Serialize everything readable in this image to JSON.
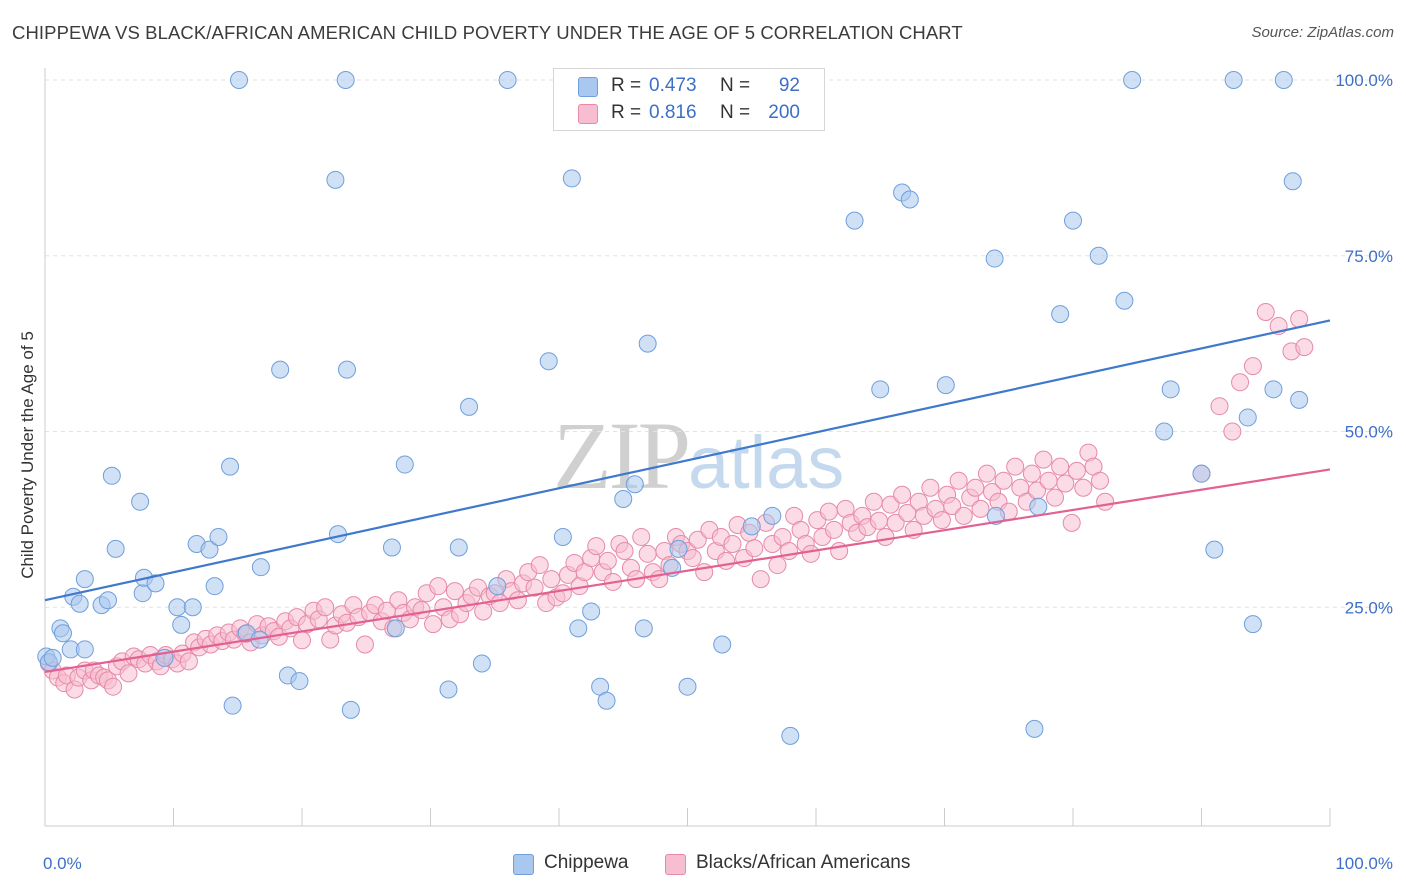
{
  "header": {
    "title": "CHIPPEWA VS BLACK/AFRICAN AMERICAN CHILD POVERTY UNDER THE AGE OF 5 CORRELATION CHART",
    "source": "Source: ZipAtlas.com"
  },
  "watermark": {
    "zip": "ZIP",
    "atlas": "atlas"
  },
  "legend": {
    "rows": [
      {
        "r_label": "R =",
        "r_value": "0.473",
        "n_label": "N =",
        "n_value": "92",
        "color": "#a9c8ef",
        "border": "#6f9fdc"
      },
      {
        "r_label": "R =",
        "r_value": "0.816",
        "n_label": "N =",
        "n_value": "200",
        "color": "#f7bdd0",
        "border": "#e68aa8"
      }
    ]
  },
  "bottom_legend": [
    {
      "label": "Chippewa",
      "color": "#a9c8ef",
      "border": "#6f9fdc"
    },
    {
      "label": "Blacks/African Americans",
      "color": "#f7bdd0",
      "border": "#e68aa8"
    }
  ],
  "chart_data": {
    "type": "scatter",
    "title": "CHIPPEWA VS BLACK/AFRICAN AMERICAN CHILD POVERTY UNDER THE AGE OF 5 CORRELATION CHART",
    "xlabel": "",
    "ylabel": "Child Poverty Under the Age of 5",
    "xlim": [
      0,
      100
    ],
    "ylim": [
      0,
      102
    ],
    "x_tick_labels": [
      "0.0%",
      "100.0%"
    ],
    "y_ticks": [
      25,
      50,
      75,
      100
    ],
    "y_tick_labels": [
      "25.0%",
      "50.0%",
      "75.0%",
      "100.0%"
    ],
    "grid": true,
    "legend_position": "top-center",
    "series": [
      {
        "name": "Chippewa",
        "color": "#6f9fdc",
        "fill": "#a9c8ef",
        "trend": {
          "x": [
            0,
            100
          ],
          "y": [
            26.0,
            65.8
          ],
          "color": "#3f78cc"
        },
        "points": [
          [
            0.1,
            18.0
          ],
          [
            0.3,
            17.2
          ],
          [
            0.6,
            17.8
          ],
          [
            1.2,
            22.0
          ],
          [
            1.4,
            21.3
          ],
          [
            2.0,
            19.0
          ],
          [
            2.2,
            26.5
          ],
          [
            2.7,
            25.5
          ],
          [
            3.1,
            29.0
          ],
          [
            3.1,
            19.0
          ],
          [
            4.4,
            25.3
          ],
          [
            4.9,
            26.0
          ],
          [
            5.2,
            43.7
          ],
          [
            5.5,
            33.3
          ],
          [
            7.4,
            40.0
          ],
          [
            7.6,
            27.0
          ],
          [
            7.7,
            29.2
          ],
          [
            8.6,
            28.4
          ],
          [
            9.3,
            17.8
          ],
          [
            10.3,
            25.0
          ],
          [
            10.6,
            22.5
          ],
          [
            11.5,
            25.0
          ],
          [
            11.8,
            34.0
          ],
          [
            12.8,
            33.2
          ],
          [
            13.2,
            28.0
          ],
          [
            13.5,
            35.0
          ],
          [
            14.4,
            45.0
          ],
          [
            14.6,
            11.0
          ],
          [
            15.1,
            100.0
          ],
          [
            15.7,
            21.3
          ],
          [
            16.7,
            20.4
          ],
          [
            16.8,
            30.7
          ],
          [
            18.3,
            58.8
          ],
          [
            18.9,
            15.3
          ],
          [
            19.8,
            14.5
          ],
          [
            22.6,
            85.8
          ],
          [
            22.8,
            35.4
          ],
          [
            23.4,
            100.0
          ],
          [
            23.5,
            58.8
          ],
          [
            23.8,
            10.4
          ],
          [
            27.0,
            33.5
          ],
          [
            27.3,
            22.0
          ],
          [
            28.0,
            45.3
          ],
          [
            31.4,
            13.3
          ],
          [
            32.2,
            33.5
          ],
          [
            33.0,
            53.5
          ],
          [
            34.0,
            17.0
          ],
          [
            35.2,
            28.0
          ],
          [
            36.0,
            100.0
          ],
          [
            39.2,
            60.0
          ],
          [
            40.3,
            35.0
          ],
          [
            41.0,
            86.0
          ],
          [
            41.5,
            22.0
          ],
          [
            42.5,
            24.4
          ],
          [
            43.2,
            13.7
          ],
          [
            43.7,
            11.7
          ],
          [
            45.0,
            40.4
          ],
          [
            45.9,
            42.5
          ],
          [
            46.6,
            22.0
          ],
          [
            46.9,
            62.5
          ],
          [
            48.8,
            30.6
          ],
          [
            49.3,
            33.3
          ],
          [
            50.0,
            13.7
          ],
          [
            52.7,
            19.7
          ],
          [
            56.6,
            38.0
          ],
          [
            58.0,
            6.7
          ],
          [
            63.0,
            80.0
          ],
          [
            65.0,
            56.0
          ],
          [
            66.7,
            84.0
          ],
          [
            67.3,
            83.0
          ],
          [
            70.1,
            56.6
          ],
          [
            73.9,
            74.6
          ],
          [
            74.0,
            38.0
          ],
          [
            77.0,
            7.7
          ],
          [
            77.3,
            39.3
          ],
          [
            79.0,
            66.7
          ],
          [
            80.0,
            80.0
          ],
          [
            82.0,
            75.0
          ],
          [
            84.0,
            68.6
          ],
          [
            84.6,
            100.0
          ],
          [
            87.1,
            50.0
          ],
          [
            87.6,
            56.0
          ],
          [
            90.0,
            44.0
          ],
          [
            91.0,
            33.2
          ],
          [
            92.5,
            100.0
          ],
          [
            93.6,
            52.0
          ],
          [
            94.0,
            22.6
          ],
          [
            95.6,
            56.0
          ],
          [
            96.4,
            100.0
          ],
          [
            97.1,
            85.6
          ],
          [
            97.6,
            54.5
          ],
          [
            55.0,
            36.5
          ]
        ]
      },
      {
        "name": "Blacks/African Americans",
        "color": "#e68aa8",
        "fill": "#f7bdd0",
        "trend": {
          "x": [
            0,
            100
          ],
          "y": [
            15.8,
            44.6
          ],
          "color": "#e26192"
        },
        "points": [
          [
            0.3,
            17.0
          ],
          [
            0.6,
            16.0
          ],
          [
            1.0,
            15.0
          ],
          [
            1.5,
            14.2
          ],
          [
            1.7,
            15.3
          ],
          [
            2.3,
            13.3
          ],
          [
            2.6,
            15.0
          ],
          [
            3.1,
            16.0
          ],
          [
            3.6,
            14.6
          ],
          [
            3.8,
            16.0
          ],
          [
            4.2,
            15.3
          ],
          [
            4.6,
            15.0
          ],
          [
            4.9,
            14.6
          ],
          [
            5.3,
            13.7
          ],
          [
            5.6,
            16.6
          ],
          [
            6.0,
            17.3
          ],
          [
            6.5,
            15.6
          ],
          [
            6.9,
            18.0
          ],
          [
            7.3,
            17.6
          ],
          [
            7.8,
            17.0
          ],
          [
            8.2,
            18.2
          ],
          [
            8.7,
            17.3
          ],
          [
            9.0,
            16.6
          ],
          [
            9.4,
            18.2
          ],
          [
            9.9,
            17.6
          ],
          [
            10.3,
            17.0
          ],
          [
            10.7,
            18.4
          ],
          [
            11.2,
            17.3
          ],
          [
            11.6,
            20.0
          ],
          [
            12.0,
            19.3
          ],
          [
            12.5,
            20.5
          ],
          [
            12.9,
            19.7
          ],
          [
            13.4,
            21.0
          ],
          [
            13.8,
            20.2
          ],
          [
            14.3,
            21.4
          ],
          [
            14.7,
            20.4
          ],
          [
            15.2,
            22.0
          ],
          [
            15.6,
            21.2
          ],
          [
            16.0,
            20.0
          ],
          [
            16.5,
            22.6
          ],
          [
            16.9,
            21.0
          ],
          [
            17.4,
            22.3
          ],
          [
            17.8,
            21.6
          ],
          [
            18.2,
            20.8
          ],
          [
            18.7,
            23.0
          ],
          [
            19.1,
            22.0
          ],
          [
            19.6,
            23.6
          ],
          [
            20.0,
            20.3
          ],
          [
            20.4,
            22.6
          ],
          [
            20.9,
            24.5
          ],
          [
            21.3,
            23.3
          ],
          [
            21.8,
            25.0
          ],
          [
            22.2,
            20.4
          ],
          [
            22.6,
            22.4
          ],
          [
            23.1,
            24.0
          ],
          [
            23.5,
            22.8
          ],
          [
            24.0,
            25.3
          ],
          [
            24.4,
            23.6
          ],
          [
            24.9,
            19.7
          ],
          [
            25.3,
            24.2
          ],
          [
            25.7,
            25.3
          ],
          [
            26.2,
            23.0
          ],
          [
            26.6,
            24.5
          ],
          [
            27.1,
            22.0
          ],
          [
            27.5,
            26.0
          ],
          [
            27.9,
            24.2
          ],
          [
            28.4,
            23.3
          ],
          [
            28.8,
            25.0
          ],
          [
            29.3,
            24.6
          ],
          [
            29.7,
            27.0
          ],
          [
            30.2,
            22.6
          ],
          [
            30.6,
            28.0
          ],
          [
            31.0,
            25.0
          ],
          [
            31.5,
            23.3
          ],
          [
            31.9,
            27.3
          ],
          [
            32.3,
            24.0
          ],
          [
            32.8,
            25.6
          ],
          [
            33.2,
            26.6
          ],
          [
            33.7,
            27.8
          ],
          [
            34.1,
            24.4
          ],
          [
            34.6,
            26.6
          ],
          [
            35.0,
            27.0
          ],
          [
            35.4,
            25.6
          ],
          [
            35.9,
            29.0
          ],
          [
            36.3,
            27.3
          ],
          [
            36.8,
            26.0
          ],
          [
            37.2,
            28.4
          ],
          [
            37.6,
            30.0
          ],
          [
            38.1,
            27.8
          ],
          [
            38.5,
            31.0
          ],
          [
            39.0,
            25.6
          ],
          [
            39.4,
            29.0
          ],
          [
            39.8,
            26.4
          ],
          [
            40.3,
            27.0
          ],
          [
            40.7,
            29.6
          ],
          [
            41.2,
            31.3
          ],
          [
            41.6,
            28.0
          ],
          [
            42.0,
            30.0
          ],
          [
            42.5,
            32.0
          ],
          [
            42.9,
            33.7
          ],
          [
            43.4,
            30.0
          ],
          [
            43.8,
            31.6
          ],
          [
            44.2,
            28.6
          ],
          [
            44.7,
            34.0
          ],
          [
            45.1,
            33.0
          ],
          [
            45.6,
            30.6
          ],
          [
            46.0,
            29.0
          ],
          [
            46.4,
            35.0
          ],
          [
            46.9,
            32.6
          ],
          [
            47.3,
            30.0
          ],
          [
            47.8,
            29.0
          ],
          [
            48.2,
            33.0
          ],
          [
            48.6,
            31.0
          ],
          [
            49.1,
            35.0
          ],
          [
            49.5,
            34.0
          ],
          [
            50.0,
            33.0
          ],
          [
            50.4,
            32.0
          ],
          [
            50.8,
            34.6
          ],
          [
            51.3,
            30.0
          ],
          [
            51.7,
            36.0
          ],
          [
            52.2,
            33.0
          ],
          [
            52.6,
            35.0
          ],
          [
            53.0,
            31.6
          ],
          [
            53.5,
            34.0
          ],
          [
            53.9,
            36.7
          ],
          [
            54.4,
            32.0
          ],
          [
            54.8,
            35.6
          ],
          [
            55.2,
            33.4
          ],
          [
            55.7,
            29.0
          ],
          [
            56.1,
            37.0
          ],
          [
            56.6,
            34.0
          ],
          [
            57.0,
            31.0
          ],
          [
            57.4,
            35.0
          ],
          [
            57.9,
            33.0
          ],
          [
            58.3,
            38.0
          ],
          [
            58.8,
            36.0
          ],
          [
            59.2,
            34.0
          ],
          [
            59.6,
            32.6
          ],
          [
            60.1,
            37.4
          ],
          [
            60.5,
            35.0
          ],
          [
            61.0,
            38.6
          ],
          [
            61.4,
            36.0
          ],
          [
            61.8,
            33.0
          ],
          [
            62.3,
            39.0
          ],
          [
            62.7,
            37.0
          ],
          [
            63.2,
            35.6
          ],
          [
            63.6,
            38.0
          ],
          [
            64.0,
            36.4
          ],
          [
            64.5,
            40.0
          ],
          [
            64.9,
            37.3
          ],
          [
            65.4,
            35.0
          ],
          [
            65.8,
            39.6
          ],
          [
            66.2,
            37.0
          ],
          [
            66.7,
            41.0
          ],
          [
            67.1,
            38.4
          ],
          [
            67.6,
            36.0
          ],
          [
            68.0,
            40.0
          ],
          [
            68.4,
            38.0
          ],
          [
            68.9,
            42.0
          ],
          [
            69.3,
            39.0
          ],
          [
            69.8,
            37.4
          ],
          [
            70.2,
            41.0
          ],
          [
            70.6,
            39.4
          ],
          [
            71.1,
            43.0
          ],
          [
            71.5,
            38.0
          ],
          [
            72.0,
            40.6
          ],
          [
            72.4,
            42.0
          ],
          [
            72.8,
            39.0
          ],
          [
            73.3,
            44.0
          ],
          [
            73.7,
            41.4
          ],
          [
            74.2,
            40.0
          ],
          [
            74.6,
            43.0
          ],
          [
            75.0,
            38.6
          ],
          [
            75.5,
            45.0
          ],
          [
            75.9,
            42.0
          ],
          [
            76.4,
            40.0
          ],
          [
            76.8,
            44.0
          ],
          [
            77.2,
            41.6
          ],
          [
            77.7,
            46.0
          ],
          [
            78.1,
            43.0
          ],
          [
            78.6,
            40.6
          ],
          [
            79.0,
            45.0
          ],
          [
            79.4,
            42.6
          ],
          [
            79.9,
            37.0
          ],
          [
            80.3,
            44.4
          ],
          [
            80.8,
            42.0
          ],
          [
            81.2,
            47.0
          ],
          [
            81.6,
            45.0
          ],
          [
            82.1,
            43.0
          ],
          [
            82.5,
            40.0
          ],
          [
            93.0,
            57.0
          ],
          [
            94.0,
            59.3
          ],
          [
            95.0,
            67.0
          ],
          [
            96.0,
            65.0
          ],
          [
            97.0,
            61.4
          ],
          [
            97.6,
            66.0
          ],
          [
            98.0,
            62.0
          ],
          [
            92.4,
            50.0
          ],
          [
            91.4,
            53.6
          ],
          [
            90.0,
            44.0
          ]
        ]
      }
    ]
  }
}
